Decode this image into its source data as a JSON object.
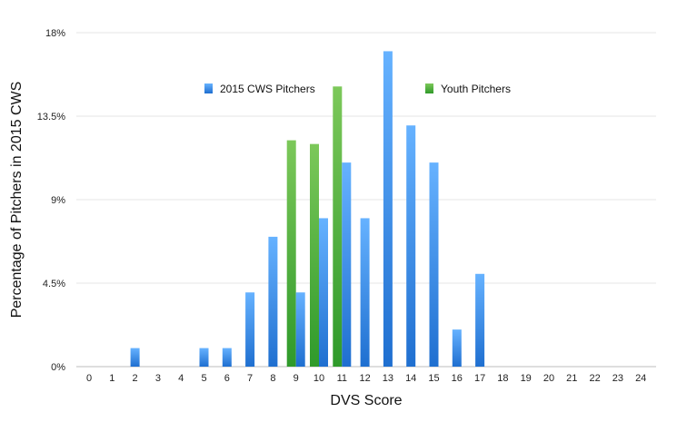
{
  "chart_data": {
    "type": "bar",
    "xlabel": "DVS Score",
    "ylabel": "Percentage of Pitchers in 2015 CWS",
    "categories": [
      "0",
      "1",
      "2",
      "3",
      "4",
      "5",
      "6",
      "7",
      "8",
      "9",
      "10",
      "11",
      "12",
      "13",
      "14",
      "15",
      "16",
      "17",
      "18",
      "19",
      "20",
      "21",
      "22",
      "23",
      "24"
    ],
    "ylim": [
      0,
      18
    ],
    "y_ticks": [
      0,
      4.5,
      9,
      13.5,
      18
    ],
    "y_tick_labels": [
      "0%",
      "4.5%",
      "9%",
      "13.5%",
      "18%"
    ],
    "grid": true,
    "legend_position": "top",
    "series": [
      {
        "name": "2015 CWS Pitchers",
        "color": "#3f8fe6",
        "values": [
          0,
          0,
          1,
          0,
          0,
          1,
          1,
          4,
          7,
          4,
          8,
          11,
          8,
          17,
          13,
          11,
          2,
          5,
          0,
          0,
          0,
          0,
          0,
          0,
          0
        ]
      },
      {
        "name": "Youth Pitchers",
        "color": "#4caf3a",
        "values": [
          0,
          0,
          0,
          0,
          0,
          0,
          0,
          0,
          0,
          12.2,
          12,
          15.1,
          0,
          0,
          0,
          0,
          0,
          0,
          0,
          0,
          0,
          0,
          0,
          0,
          0
        ]
      }
    ]
  }
}
